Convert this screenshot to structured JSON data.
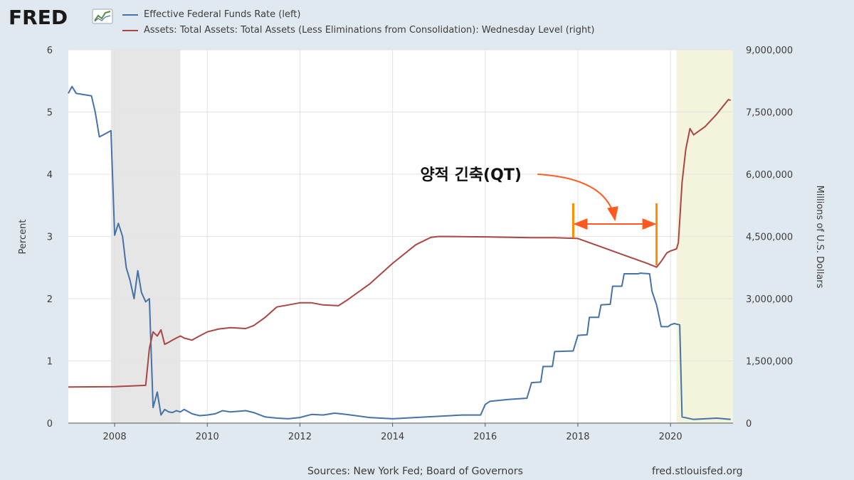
{
  "header": {
    "logo_text": "FRED",
    "legend": [
      {
        "label": "Effective Federal Funds Rate (left)",
        "color": "#4572a7"
      },
      {
        "label": "Assets: Total Assets: Total Assets (Less Eliminations from Consolidation): Wednesday Level (right)",
        "color": "#aa4643"
      }
    ]
  },
  "footer": {
    "sources": "Sources: New York Fed; Board of Governors",
    "url": "fred.stlouisfed.org"
  },
  "chart_data": {
    "type": "line",
    "xlim": [
      2007.0,
      2021.35
    ],
    "x_ticks": [
      2008,
      2010,
      2012,
      2014,
      2016,
      2018,
      2020
    ],
    "x_tick_labels": [
      "2008",
      "2010",
      "2012",
      "2014",
      "2016",
      "2018",
      "2020"
    ],
    "ylabel_left": "Percent",
    "ylim_left": [
      0,
      6
    ],
    "y_ticks_left": [
      0,
      1,
      2,
      3,
      4,
      5,
      6
    ],
    "y_tick_labels_left": [
      "0",
      "1",
      "2",
      "3",
      "4",
      "5",
      "6"
    ],
    "ylabel_right": "Millions of U.S. Dollars",
    "ylim_right": [
      0,
      9000000
    ],
    "y_ticks_right": [
      0,
      1500000,
      3000000,
      4500000,
      6000000,
      7500000,
      9000000
    ],
    "y_tick_labels_right": [
      "0",
      "1,500,000",
      "3,000,000",
      "4,500,000",
      "6,000,000",
      "7,500,000",
      "9,000,000"
    ],
    "grid": true,
    "shaded_regions": [
      {
        "x0": 2007.92,
        "x1": 2009.42,
        "color": "#e6e6e6"
      },
      {
        "x0": 2020.13,
        "x1": 2021.35,
        "color": "#f4f3dc"
      }
    ],
    "annotation": {
      "text": "양적 긴축(QT)",
      "x0": 2017.9,
      "x1": 2019.7,
      "bar_y_top": 5300000,
      "bar_y_bottom_left": 4470000,
      "bar_y_bottom_right": 3800000,
      "arrow_y": 4800000,
      "color": "#ff8c00"
    },
    "series": [
      {
        "name": "Effective Federal Funds Rate",
        "axis": "left",
        "color": "#4572a7",
        "x": [
          2007.0,
          2007.08,
          2007.17,
          2007.33,
          2007.5,
          2007.58,
          2007.67,
          2007.75,
          2007.92,
          2008.0,
          2008.08,
          2008.17,
          2008.25,
          2008.33,
          2008.42,
          2008.5,
          2008.58,
          2008.67,
          2008.75,
          2008.83,
          2008.92,
          2009.0,
          2009.08,
          2009.17,
          2009.25,
          2009.33,
          2009.42,
          2009.5,
          2009.67,
          2009.83,
          2010.0,
          2010.17,
          2010.33,
          2010.5,
          2010.67,
          2010.83,
          2011.0,
          2011.25,
          2011.5,
          2011.75,
          2012.0,
          2012.25,
          2012.5,
          2012.75,
          2013.0,
          2013.5,
          2014.0,
          2014.5,
          2015.0,
          2015.5,
          2015.9,
          2016.0,
          2016.1,
          2016.5,
          2016.9,
          2017.0,
          2017.2,
          2017.25,
          2017.45,
          2017.5,
          2017.9,
          2018.0,
          2018.2,
          2018.25,
          2018.45,
          2018.5,
          2018.7,
          2018.75,
          2018.95,
          2019.0,
          2019.3,
          2019.35,
          2019.55,
          2019.6,
          2019.7,
          2019.8,
          2019.95,
          2020.0,
          2020.08,
          2020.2,
          2020.25,
          2020.5,
          2021.0,
          2021.3
        ],
        "values": [
          5.3,
          5.41,
          5.3,
          5.28,
          5.26,
          5.0,
          4.6,
          4.63,
          4.7,
          3.02,
          3.21,
          3.0,
          2.5,
          2.3,
          2.0,
          2.45,
          2.1,
          1.95,
          2.0,
          0.25,
          0.5,
          0.13,
          0.22,
          0.18,
          0.17,
          0.2,
          0.18,
          0.22,
          0.15,
          0.12,
          0.13,
          0.15,
          0.2,
          0.18,
          0.19,
          0.2,
          0.17,
          0.1,
          0.08,
          0.07,
          0.09,
          0.14,
          0.13,
          0.16,
          0.14,
          0.09,
          0.07,
          0.09,
          0.11,
          0.13,
          0.13,
          0.3,
          0.35,
          0.38,
          0.4,
          0.65,
          0.66,
          0.91,
          0.91,
          1.15,
          1.16,
          1.41,
          1.42,
          1.7,
          1.7,
          1.9,
          1.91,
          2.2,
          2.2,
          2.4,
          2.4,
          2.41,
          2.4,
          2.12,
          1.9,
          1.55,
          1.55,
          1.58,
          1.6,
          1.58,
          0.1,
          0.06,
          0.08,
          0.06
        ]
      },
      {
        "name": "Total Assets",
        "axis": "right",
        "color": "#aa4643",
        "x": [
          2007.0,
          2008.0,
          2008.67,
          2008.75,
          2008.83,
          2008.92,
          2009.0,
          2009.08,
          2009.17,
          2009.25,
          2009.33,
          2009.42,
          2009.5,
          2009.67,
          2009.83,
          2010.0,
          2010.25,
          2010.5,
          2010.83,
          2011.0,
          2011.25,
          2011.5,
          2011.75,
          2012.0,
          2012.25,
          2012.5,
          2012.83,
          2013.0,
          2013.5,
          2014.0,
          2014.5,
          2014.83,
          2015.0,
          2016.0,
          2017.0,
          2017.5,
          2018.0,
          2018.5,
          2019.0,
          2019.5,
          2019.7,
          2019.8,
          2019.92,
          2020.0,
          2020.13,
          2020.17,
          2020.25,
          2020.33,
          2020.42,
          2020.5,
          2020.75,
          2021.0,
          2021.25,
          2021.3
        ],
        "values": [
          870000,
          880000,
          910000,
          1800000,
          2200000,
          2100000,
          2250000,
          1900000,
          1950000,
          2000000,
          2050000,
          2100000,
          2050000,
          2000000,
          2100000,
          2200000,
          2270000,
          2300000,
          2280000,
          2350000,
          2550000,
          2800000,
          2850000,
          2900000,
          2900000,
          2850000,
          2830000,
          2950000,
          3350000,
          3850000,
          4300000,
          4480000,
          4500000,
          4490000,
          4470000,
          4470000,
          4450000,
          4250000,
          4050000,
          3850000,
          3760000,
          3900000,
          4100000,
          4150000,
          4200000,
          4350000,
          5800000,
          6600000,
          7100000,
          6950000,
          7150000,
          7450000,
          7800000,
          7780000
        ]
      }
    ]
  }
}
